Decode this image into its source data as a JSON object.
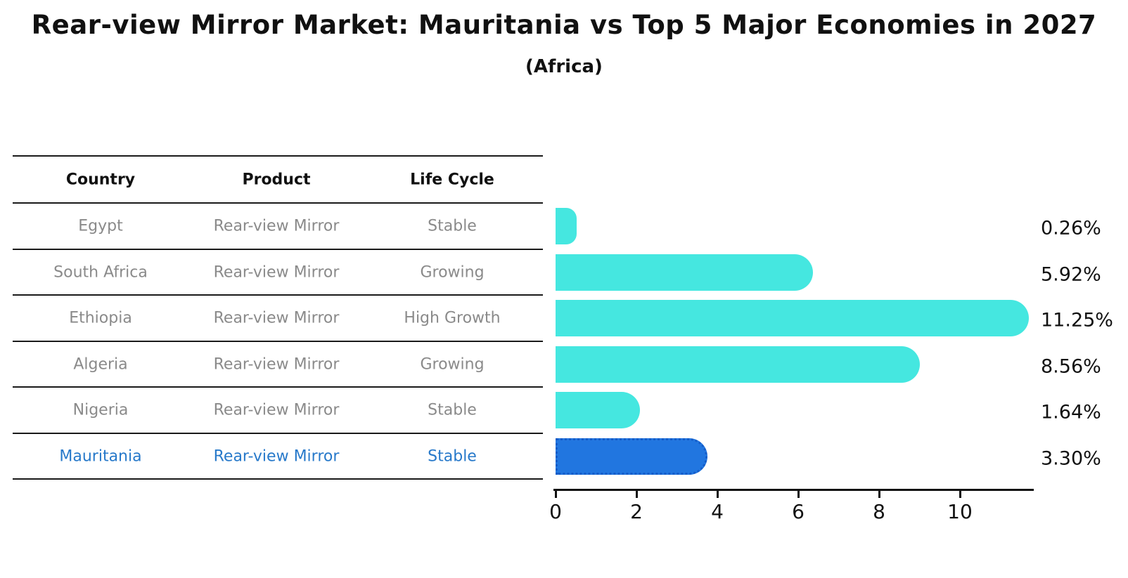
{
  "title": "Rear-view Mirror Market: Mauritania vs Top 5 Major Economies in 2027",
  "subtitle": "(Africa)",
  "table": {
    "headers": [
      "Country",
      "Product",
      "Life Cycle"
    ],
    "rows": [
      {
        "cells": [
          "Egypt",
          "Rear-view Mirror",
          "Stable"
        ],
        "highlight": false
      },
      {
        "cells": [
          "South Africa",
          "Rear-view Mirror",
          "Growing"
        ],
        "highlight": false
      },
      {
        "cells": [
          "Ethiopia",
          "Rear-view Mirror",
          "High Growth"
        ],
        "highlight": false
      },
      {
        "cells": [
          "Algeria",
          "Rear-view Mirror",
          "Growing"
        ],
        "highlight": false
      },
      {
        "cells": [
          "Nigeria",
          "Rear-view Mirror",
          "Stable"
        ],
        "highlight": false
      },
      {
        "cells": [
          "Mauritania",
          "Rear-view Mirror",
          "Stable"
        ],
        "highlight": true
      }
    ]
  },
  "chart_data": {
    "type": "bar",
    "orientation": "horizontal",
    "title": "Rear-view Mirror Market: Mauritania vs Top 5 Major Economies in 2027",
    "subtitle": "(Africa)",
    "categories": [
      "Egypt",
      "South Africa",
      "Ethiopia",
      "Algeria",
      "Nigeria",
      "Mauritania"
    ],
    "values": [
      0.26,
      5.92,
      11.25,
      8.56,
      1.64,
      3.3
    ],
    "value_labels": [
      "0.26%",
      "5.92%",
      "11.25%",
      "8.56%",
      "1.64%",
      "3.30%"
    ],
    "x_ticks": [
      "0",
      "2",
      "4",
      "6",
      "8",
      "10"
    ],
    "xlim": [
      0,
      11.85
    ],
    "grid": false,
    "legend": "none",
    "highlight_index": 5,
    "colors": {
      "bar": "#45e7e0",
      "highlight_bar": "#2176e0",
      "highlight_border": "#155cc8",
      "row_text": "#8a8a8a",
      "highlight_text": "#2779ca",
      "axis": "#111111"
    }
  }
}
